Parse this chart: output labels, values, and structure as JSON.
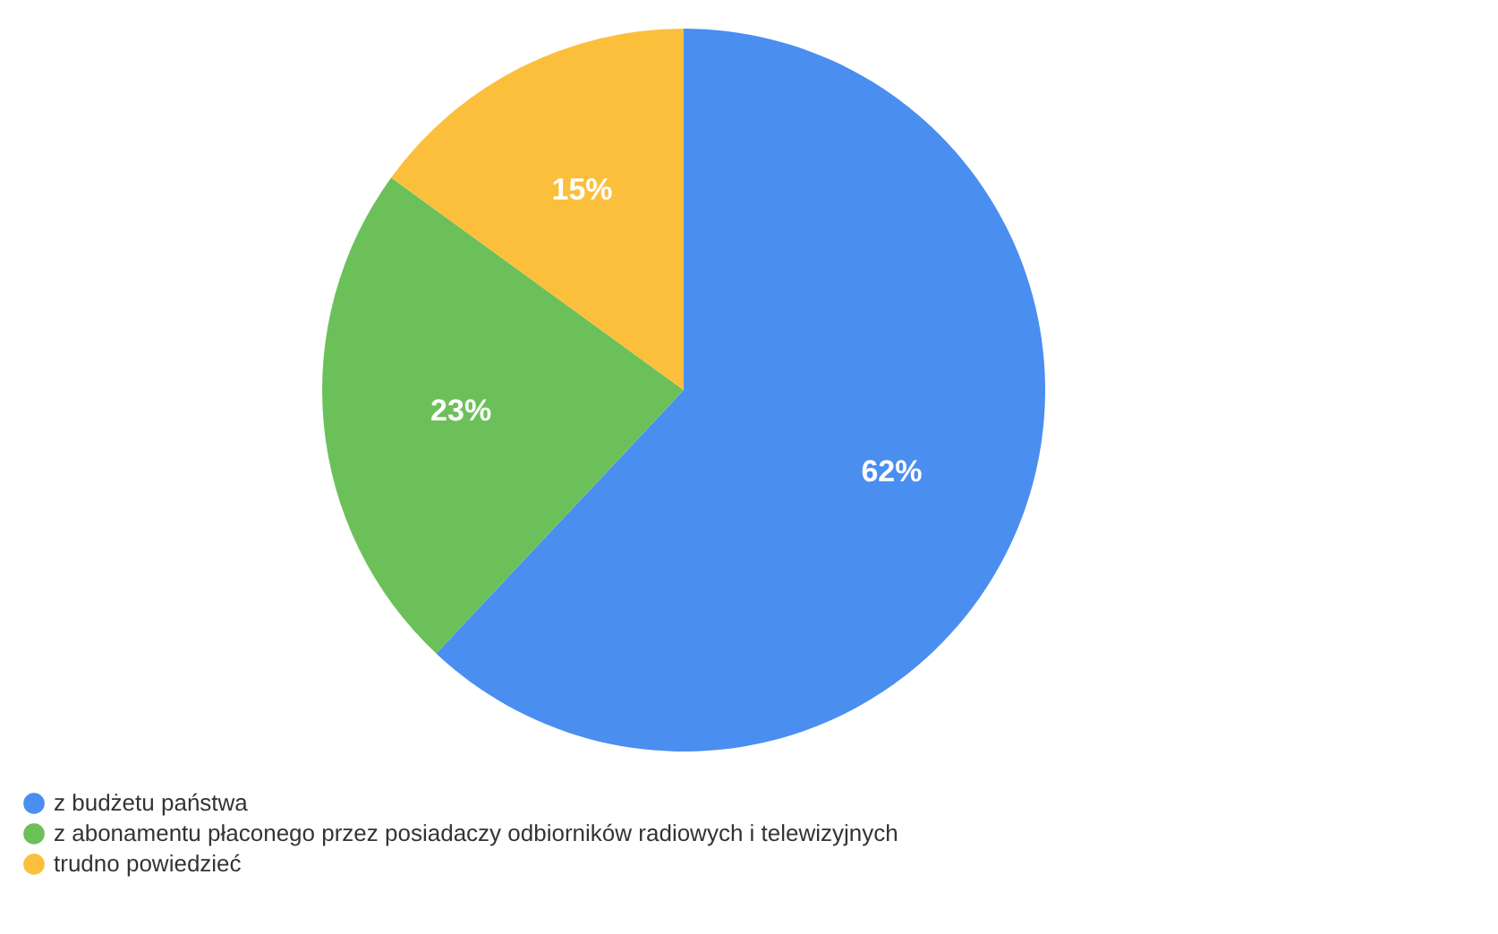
{
  "chart_data": {
    "type": "pie",
    "categories": [
      "z budżetu państwa",
      "z abonamentu płaconego przez posiadaczy odbiorników radiowych i telewizyjnych",
      "trudno powiedzieć"
    ],
    "values": [
      62,
      23,
      15
    ],
    "colors": [
      "#4a8ef0",
      "#6cc05a",
      "#fbbf3c"
    ],
    "value_labels": [
      "62%",
      "23%",
      "15%"
    ],
    "legend": "bottom left"
  }
}
